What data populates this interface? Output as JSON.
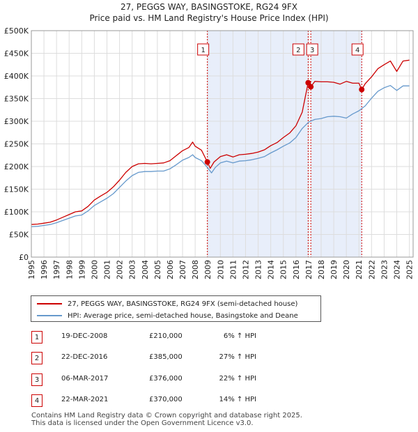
{
  "chart_data": {
    "type": "line",
    "title": "27, PEGGS WAY, BASINGSTOKE, RG24 9FX",
    "subtitle": "Price paid vs. HM Land Registry's House Price Index (HPI)",
    "xlabel": "",
    "ylabel": "",
    "xlim": [
      1995,
      2025.3
    ],
    "ylim": [
      0,
      500000
    ],
    "y_ticks": [
      {
        "value": 0,
        "label": "£0"
      },
      {
        "value": 50000,
        "label": "£50K"
      },
      {
        "value": 100000,
        "label": "£100K"
      },
      {
        "value": 150000,
        "label": "£150K"
      },
      {
        "value": 200000,
        "label": "£200K"
      },
      {
        "value": 250000,
        "label": "£250K"
      },
      {
        "value": 300000,
        "label": "£300K"
      },
      {
        "value": 350000,
        "label": "£350K"
      },
      {
        "value": 400000,
        "label": "£400K"
      },
      {
        "value": 450000,
        "label": "£450K"
      },
      {
        "value": 500000,
        "label": "£500K"
      }
    ],
    "x_ticks": [
      "1995",
      "1996",
      "1997",
      "1998",
      "1999",
      "2000",
      "2001",
      "2002",
      "2003",
      "2004",
      "2005",
      "2006",
      "2007",
      "2008",
      "2009",
      "2010",
      "2011",
      "2012",
      "2013",
      "2014",
      "2015",
      "2016",
      "2017",
      "2018",
      "2019",
      "2020",
      "2021",
      "2022",
      "2023",
      "2024",
      "2025"
    ],
    "grid": true,
    "series": [
      {
        "name": "27, PEGGS WAY, BASINGSTOKE, RG24 9FX (semi-detached house)",
        "color": "#cc0000",
        "x": [
          1995.0,
          1995.5,
          1996.0,
          1996.5,
          1997.0,
          1997.5,
          1998.0,
          1998.5,
          1999.0,
          1999.5,
          2000.0,
          2000.5,
          2001.0,
          2001.5,
          2002.0,
          2002.5,
          2003.0,
          2003.5,
          2004.0,
          2004.5,
          2005.0,
          2005.5,
          2006.0,
          2006.5,
          2007.0,
          2007.5,
          2007.8,
          2008.0,
          2008.5,
          2008.97,
          2009.2,
          2009.5,
          2010.0,
          2010.5,
          2011.0,
          2011.5,
          2012.0,
          2012.5,
          2013.0,
          2013.5,
          2014.0,
          2014.5,
          2015.0,
          2015.5,
          2016.0,
          2016.5,
          2016.97,
          2017.18,
          2017.5,
          2018.0,
          2018.5,
          2019.0,
          2019.5,
          2020.0,
          2020.5,
          2021.0,
          2021.22,
          2021.5,
          2022.0,
          2022.5,
          2023.0,
          2023.5,
          2024.0,
          2024.5,
          2025.0
        ],
        "y": [
          72000,
          73000,
          75000,
          77000,
          82000,
          88000,
          94000,
          100000,
          102000,
          112000,
          126000,
          135000,
          143000,
          155000,
          170000,
          187000,
          200000,
          206000,
          207000,
          206000,
          207000,
          208000,
          213000,
          224000,
          235000,
          242000,
          254000,
          245000,
          236000,
          210000,
          196000,
          210000,
          222000,
          226000,
          221000,
          226000,
          227000,
          229000,
          232000,
          237000,
          246000,
          253000,
          264000,
          274000,
          290000,
          320000,
          385000,
          376000,
          388000,
          387000,
          387000,
          386000,
          382000,
          388000,
          384000,
          384000,
          370000,
          383000,
          398000,
          416000,
          425000,
          433000,
          410000,
          433000,
          435000
        ]
      },
      {
        "name": "HPI: Average price, semi-detached house, Basingstoke and Deane",
        "color": "#6699cc",
        "x": [
          1995.0,
          1995.5,
          1996.0,
          1996.5,
          1997.0,
          1997.5,
          1998.0,
          1998.5,
          1999.0,
          1999.5,
          2000.0,
          2000.5,
          2001.0,
          2001.5,
          2002.0,
          2002.5,
          2003.0,
          2003.5,
          2004.0,
          2004.5,
          2005.0,
          2005.5,
          2006.0,
          2006.5,
          2007.0,
          2007.5,
          2007.8,
          2008.0,
          2008.5,
          2009.0,
          2009.3,
          2009.6,
          2010.0,
          2010.5,
          2011.0,
          2011.5,
          2012.0,
          2012.5,
          2013.0,
          2013.5,
          2014.0,
          2014.5,
          2015.0,
          2015.5,
          2016.0,
          2016.5,
          2017.0,
          2017.5,
          2018.0,
          2018.5,
          2019.0,
          2019.5,
          2020.0,
          2020.5,
          2021.0,
          2021.5,
          2022.0,
          2022.5,
          2023.0,
          2023.5,
          2024.0,
          2024.5,
          2025.0
        ],
        "y": [
          67000,
          68000,
          70000,
          72000,
          76000,
          81000,
          86000,
          91000,
          93000,
          102000,
          114000,
          122000,
          130000,
          140000,
          154000,
          168000,
          180000,
          187000,
          189000,
          189000,
          190000,
          190000,
          195000,
          204000,
          214000,
          220000,
          226000,
          220000,
          213000,
          197000,
          186000,
          198000,
          208000,
          212000,
          208000,
          212000,
          213000,
          215000,
          218000,
          222000,
          230000,
          237000,
          245000,
          252000,
          264000,
          284000,
          298000,
          304000,
          306000,
          310000,
          311000,
          310000,
          307000,
          316000,
          323000,
          334000,
          351000,
          366000,
          374000,
          379000,
          368000,
          378000,
          378000
        ]
      }
    ],
    "annotations": [
      {
        "label": "1",
        "x": 2008.97,
        "y": 210000
      },
      {
        "label": "2",
        "x": 2016.97,
        "y": 385000
      },
      {
        "label": "3",
        "x": 2017.18,
        "y": 376000
      },
      {
        "label": "4",
        "x": 2021.22,
        "y": 370000
      }
    ],
    "shaded_ranges": [
      {
        "from": 2008.97,
        "to": 2016.97
      },
      {
        "from": 2017.18,
        "to": 2021.22
      }
    ],
    "legend_position": "bottom"
  },
  "legend": {
    "property_label": "27, PEGGS WAY, BASINGSTOKE, RG24 9FX (semi-detached house)",
    "hpi_label": "HPI: Average price, semi-detached house, Basingstoke and Deane"
  },
  "colors": {
    "property": "#cc0000",
    "hpi": "#6699cc",
    "shade": "#e8eefa",
    "grid": "#dddddd",
    "marker_line": "#cc0000"
  },
  "sales": [
    {
      "num": "1",
      "date": "19-DEC-2008",
      "price": "£210,000",
      "hpi": "6% ↑ HPI"
    },
    {
      "num": "2",
      "date": "22-DEC-2016",
      "price": "£385,000",
      "hpi": "27% ↑ HPI"
    },
    {
      "num": "3",
      "date": "06-MAR-2017",
      "price": "£376,000",
      "hpi": "22% ↑ HPI"
    },
    {
      "num": "4",
      "date": "22-MAR-2021",
      "price": "£370,000",
      "hpi": "14% ↑ HPI"
    }
  ],
  "footer": {
    "line1": "Contains HM Land Registry data © Crown copyright and database right 2025.",
    "line2": "This data is licensed under the Open Government Licence v3.0."
  }
}
